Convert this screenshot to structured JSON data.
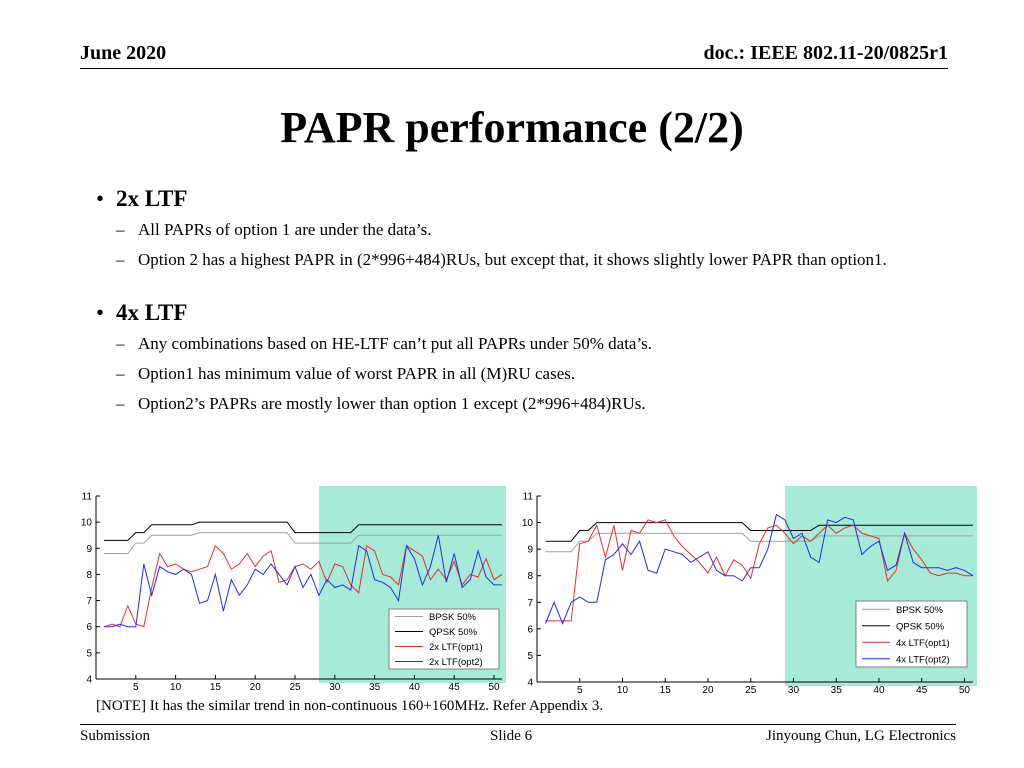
{
  "header": {
    "date": "June 2020",
    "doc": "doc.: IEEE 802.11-20/0825r1"
  },
  "title": "PAPR performance (2/2)",
  "bullets": [
    {
      "label": "2x LTF",
      "subs": [
        "All PAPRs of option 1 are under the data’s.",
        "Option 2 has a highest PAPR in (2*996+484)RUs, but except that, it shows slightly lower PAPR than option1."
      ]
    },
    {
      "label": "4x LTF",
      "subs": [
        "Any combinations based on HE-LTF can’t put all PAPRs under 50% data’s.",
        "Option1 has minimum value of worst PAPR in all (M)RU cases.",
        "Option2’s PAPRs are mostly lower than option 1 except (2*996+484)RUs."
      ]
    }
  ],
  "note": "[NOTE] It has the similar trend in non-continuous 160+160MHz. Refer Appendix 3.",
  "footer": {
    "left": "Submission",
    "center": "Slide 6",
    "right": "Jinyoung Chun, LG Electronics"
  },
  "colors": {
    "highlight": "#a8ead8",
    "bpsk": "#a0a0a0",
    "qpsk": "#000000",
    "opt1": "#e03030",
    "opt2": "#1f2fe0"
  },
  "chart_data": [
    {
      "type": "line",
      "xlim": [
        0,
        51
      ],
      "ylim": [
        4,
        11
      ],
      "xticks": [
        5,
        10,
        15,
        20,
        25,
        30,
        35,
        40,
        45,
        50
      ],
      "yticks": [
        4,
        5,
        6,
        7,
        8,
        9,
        10,
        11
      ],
      "highlight_x": [
        28,
        51
      ],
      "x": [
        1,
        2,
        3,
        4,
        5,
        6,
        7,
        8,
        9,
        10,
        11,
        12,
        13,
        14,
        15,
        16,
        17,
        18,
        19,
        20,
        21,
        22,
        23,
        24,
        25,
        26,
        27,
        28,
        29,
        30,
        31,
        32,
        33,
        34,
        35,
        36,
        37,
        38,
        39,
        40,
        41,
        42,
        43,
        44,
        45,
        46,
        47,
        48,
        49,
        50,
        51
      ],
      "series": [
        {
          "name": "BPSK 50%",
          "color": "#a0a0a0",
          "values": [
            8.8,
            8.8,
            8.8,
            8.8,
            9.2,
            9.2,
            9.5,
            9.5,
            9.5,
            9.5,
            9.5,
            9.5,
            9.6,
            9.6,
            9.6,
            9.6,
            9.6,
            9.6,
            9.6,
            9.6,
            9.6,
            9.6,
            9.6,
            9.6,
            9.2,
            9.2,
            9.2,
            9.2,
            9.2,
            9.2,
            9.2,
            9.2,
            9.5,
            9.5,
            9.5,
            9.5,
            9.5,
            9.5,
            9.5,
            9.5,
            9.5,
            9.5,
            9.5,
            9.5,
            9.5,
            9.5,
            9.5,
            9.5,
            9.5,
            9.5,
            9.5
          ]
        },
        {
          "name": "QPSK 50%",
          "color": "#000000",
          "values": [
            9.3,
            9.3,
            9.3,
            9.3,
            9.6,
            9.6,
            9.9,
            9.9,
            9.9,
            9.9,
            9.9,
            9.9,
            10.0,
            10.0,
            10.0,
            10.0,
            10.0,
            10.0,
            10.0,
            10.0,
            10.0,
            10.0,
            10.0,
            10.0,
            9.6,
            9.6,
            9.6,
            9.6,
            9.6,
            9.6,
            9.6,
            9.6,
            9.9,
            9.9,
            9.9,
            9.9,
            9.9,
            9.9,
            9.9,
            9.9,
            9.9,
            9.9,
            9.9,
            9.9,
            9.9,
            9.9,
            9.9,
            9.9,
            9.9,
            9.9,
            9.9
          ]
        },
        {
          "name": "2x LTF(opt1)",
          "color": "#e03030",
          "values": [
            6.0,
            6.1,
            6.0,
            6.8,
            6.1,
            6.0,
            7.5,
            8.8,
            8.3,
            8.4,
            8.2,
            8.1,
            8.2,
            8.3,
            9.1,
            8.8,
            8.2,
            8.4,
            8.8,
            8.3,
            8.7,
            8.9,
            7.7,
            7.8,
            8.3,
            8.4,
            8.2,
            8.5,
            7.7,
            8.4,
            8.3,
            7.6,
            7.3,
            9.1,
            8.9,
            8.0,
            7.9,
            7.6,
            9.1,
            8.9,
            8.7,
            7.8,
            8.2,
            7.8,
            8.5,
            7.6,
            8.0,
            7.9,
            8.6,
            7.8,
            8.0
          ]
        },
        {
          "name": "2x LTF(opt2)",
          "color": "#1f2fe0",
          "values": [
            6.0,
            6.0,
            6.1,
            6.0,
            6.0,
            8.4,
            7.2,
            8.3,
            8.1,
            8.0,
            8.2,
            8.0,
            6.9,
            7.0,
            8.0,
            6.6,
            7.8,
            7.2,
            7.6,
            8.2,
            8.0,
            8.4,
            8.0,
            7.6,
            8.3,
            7.5,
            8.0,
            7.2,
            7.8,
            7.5,
            7.6,
            7.4,
            9.1,
            8.9,
            7.8,
            7.7,
            7.5,
            7.0,
            9.1,
            8.6,
            7.6,
            8.3,
            9.5,
            7.7,
            8.8,
            7.5,
            7.8,
            8.9,
            7.9,
            7.6,
            7.6
          ]
        }
      ]
    },
    {
      "type": "line",
      "xlim": [
        0,
        51
      ],
      "ylim": [
        4,
        11
      ],
      "xticks": [
        5,
        10,
        15,
        20,
        25,
        30,
        35,
        40,
        45,
        50
      ],
      "yticks": [
        4,
        5,
        6,
        7,
        8,
        9,
        10,
        11
      ],
      "highlight_x": [
        29,
        51
      ],
      "x": [
        1,
        2,
        3,
        4,
        5,
        6,
        7,
        8,
        9,
        10,
        11,
        12,
        13,
        14,
        15,
        16,
        17,
        18,
        19,
        20,
        21,
        22,
        23,
        24,
        25,
        26,
        27,
        28,
        29,
        30,
        31,
        32,
        33,
        34,
        35,
        36,
        37,
        38,
        39,
        40,
        41,
        42,
        43,
        44,
        45,
        46,
        47,
        48,
        49,
        50,
        51
      ],
      "series": [
        {
          "name": "BPSK 50%",
          "color": "#a0a0a0",
          "values": [
            8.9,
            8.9,
            8.9,
            8.9,
            9.3,
            9.3,
            9.6,
            9.6,
            9.6,
            9.6,
            9.6,
            9.6,
            9.6,
            9.6,
            9.6,
            9.6,
            9.6,
            9.6,
            9.6,
            9.6,
            9.6,
            9.6,
            9.6,
            9.6,
            9.3,
            9.3,
            9.3,
            9.3,
            9.3,
            9.3,
            9.3,
            9.3,
            9.5,
            9.5,
            9.5,
            9.5,
            9.5,
            9.5,
            9.5,
            9.5,
            9.5,
            9.5,
            9.5,
            9.5,
            9.5,
            9.5,
            9.5,
            9.5,
            9.5,
            9.5,
            9.5
          ]
        },
        {
          "name": "QPSK 50%",
          "color": "#000000",
          "values": [
            9.3,
            9.3,
            9.3,
            9.3,
            9.7,
            9.7,
            10.0,
            10.0,
            10.0,
            10.0,
            10.0,
            10.0,
            10.0,
            10.0,
            10.0,
            10.0,
            10.0,
            10.0,
            10.0,
            10.0,
            10.0,
            10.0,
            10.0,
            10.0,
            9.7,
            9.7,
            9.7,
            9.7,
            9.7,
            9.7,
            9.7,
            9.7,
            9.9,
            9.9,
            9.9,
            9.9,
            9.9,
            9.9,
            9.9,
            9.9,
            9.9,
            9.9,
            9.9,
            9.9,
            9.9,
            9.9,
            9.9,
            9.9,
            9.9,
            9.9,
            9.9
          ]
        },
        {
          "name": "4x LTF(opt1)",
          "color": "#e03030",
          "values": [
            6.3,
            6.3,
            6.3,
            6.3,
            9.2,
            9.3,
            9.9,
            8.7,
            9.9,
            8.2,
            9.7,
            9.6,
            10.1,
            10.0,
            10.1,
            9.5,
            9.1,
            8.8,
            8.5,
            8.1,
            8.7,
            8.0,
            8.6,
            8.4,
            7.9,
            9.2,
            9.8,
            9.9,
            9.6,
            9.2,
            9.5,
            9.3,
            9.6,
            9.9,
            9.6,
            9.8,
            9.9,
            9.6,
            9.5,
            9.4,
            7.8,
            8.2,
            9.6,
            9.0,
            8.6,
            8.1,
            8.0,
            8.1,
            8.1,
            8.0,
            8.0
          ]
        },
        {
          "name": "4x LTF(opt2)",
          "color": "#1f2fe0",
          "values": [
            6.2,
            7.0,
            6.2,
            7.0,
            7.2,
            7.0,
            7.0,
            8.6,
            8.8,
            9.2,
            8.8,
            9.3,
            8.2,
            8.1,
            9.0,
            8.9,
            8.8,
            8.5,
            8.7,
            8.9,
            8.2,
            8.0,
            8.0,
            7.8,
            8.3,
            8.3,
            9.0,
            10.3,
            10.1,
            9.4,
            9.6,
            8.7,
            8.5,
            10.1,
            10.0,
            10.2,
            10.1,
            8.8,
            9.1,
            9.3,
            8.2,
            8.4,
            9.6,
            8.5,
            8.3,
            8.3,
            8.3,
            8.2,
            8.3,
            8.2,
            8.0
          ]
        }
      ]
    }
  ]
}
